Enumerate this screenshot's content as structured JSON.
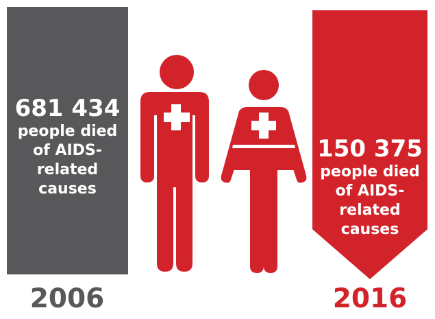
{
  "colors": {
    "bar_2006": "#58585a",
    "bar_2016": "#d2232a",
    "figure": "#d2232a",
    "cross": "#ffffff",
    "text_on_bar": "#ffffff"
  },
  "chart_data": {
    "type": "bar",
    "categories": [
      "2006",
      "2016"
    ],
    "values": [
      681434,
      150375
    ],
    "labels": [
      {
        "value": "681 434",
        "caption_lines": [
          "people died",
          "of AIDS-",
          "related",
          "causes"
        ]
      },
      {
        "value": "150 375",
        "caption_lines": [
          "people died",
          "of AIDS-",
          "related",
          "causes"
        ]
      }
    ]
  },
  "icons": [
    "male-first-aid-figure",
    "female-first-aid-figure"
  ]
}
